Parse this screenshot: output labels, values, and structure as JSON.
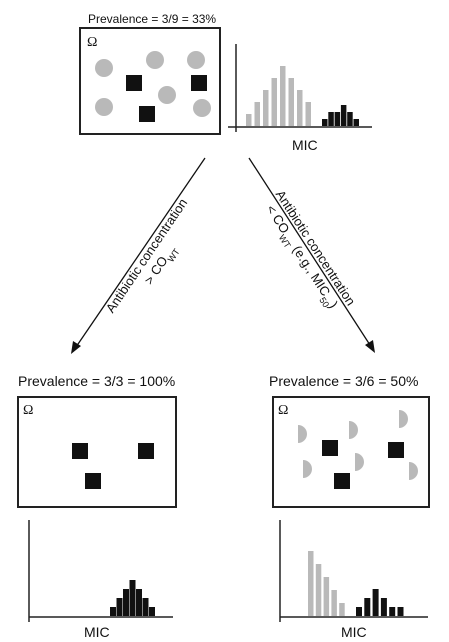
{
  "top_panel": {
    "prevalence_label": "Prevalence = 3/9 = 33%",
    "omega": "Ω",
    "axis_label": "MIC",
    "histogram": {
      "gray": [
        1,
        2,
        3,
        4,
        5,
        4,
        3,
        2
      ],
      "black": [
        1,
        2,
        2,
        3,
        2,
        1
      ]
    }
  },
  "arrows": {
    "left_line1": "Antibiotic concentration",
    "left_line2": "> CO",
    "left_line2_sub": "WT",
    "right_line1": "Antibiotic concentration",
    "right_line2_a": "< CO",
    "right_line2_sub": "WT",
    "right_line2_b": " (e.g., MIC",
    "right_line2_sub2": "50",
    "right_line2_c": ")"
  },
  "bottom_left": {
    "prevalence_label": "Prevalence = 3/3 = 100%",
    "omega": "Ω",
    "axis_label": "MIC",
    "histogram": {
      "black": [
        1,
        2,
        3,
        4,
        3,
        2,
        1
      ]
    }
  },
  "bottom_right": {
    "prevalence_label": "Prevalence = 3/6 = 50%",
    "omega": "Ω",
    "axis_label": "MIC",
    "histogram": {
      "gray": [
        5,
        4,
        3,
        2,
        1
      ],
      "black": [
        1,
        2,
        3,
        2,
        1,
        1
      ]
    }
  },
  "colors": {
    "gray": "#b9b9b9",
    "black": "#111111",
    "frame": "#222222"
  }
}
